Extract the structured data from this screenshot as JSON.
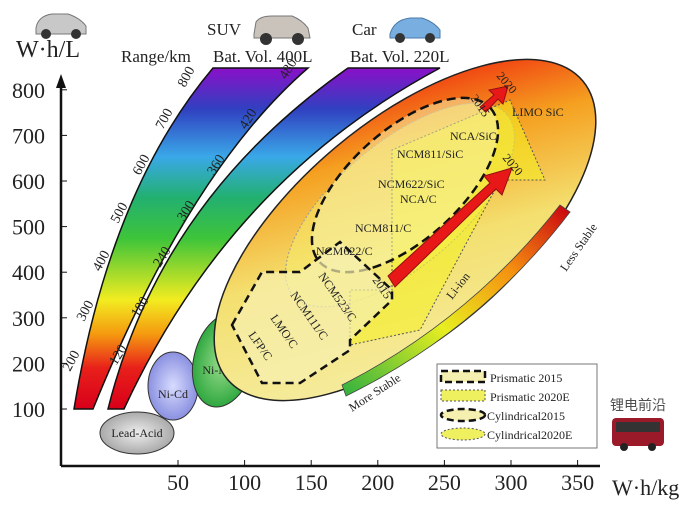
{
  "y_axis": {
    "unit": "W·h/L",
    "ticks": [
      "100",
      "200",
      "300",
      "400",
      "500",
      "600",
      "700",
      "800"
    ]
  },
  "x_axis": {
    "unit": "W·h/kg",
    "ticks": [
      "50",
      "100",
      "150",
      "200",
      "250",
      "300",
      "350"
    ]
  },
  "headers": {
    "range": "Range/km",
    "suv": "SUV",
    "suv_vol": "Bat. Vol. 400L",
    "car": "Car",
    "car_vol": "Bat. Vol. 220L"
  },
  "range_labels": [
    "200",
    "300",
    "400",
    "500",
    "600",
    "700",
    "800"
  ],
  "volume_labels": [
    "120",
    "180",
    "240",
    "300",
    "360",
    "420",
    "480"
  ],
  "chemistries": {
    "lead_acid": "Lead-Acid",
    "ni_cd": "Ni-Cd",
    "ni_mh": "Ni-MH",
    "li_ion": "Li-ion"
  },
  "materials": {
    "lfp": "LFP/C",
    "lmo": "LMO/C",
    "ncm111": "NCM111/C",
    "ncm523": "NCM523/C",
    "ncm622": "NCM622/C",
    "ncm811": "NCM811/C",
    "ncm622sic": "NCM622/SiC",
    "ncac": "NCA/C",
    "ncm811sic": "NCM811/SiC",
    "ncasic": "NCA/SiC",
    "limo": "LIMO SiC"
  },
  "years": {
    "y2015a": "2015",
    "y2015b": "2015",
    "y2020a": "2020",
    "y2020b": "2020"
  },
  "stability": {
    "more": "More Stable",
    "less": "Less Stable"
  },
  "legend": [
    {
      "label": "Prismatic   2015"
    },
    {
      "label": "Prismatic   2020E"
    },
    {
      "label": "Cylindrical2015"
    },
    {
      "label": "Cylindrical2020E"
    }
  ],
  "watermark": "锂电前沿"
}
